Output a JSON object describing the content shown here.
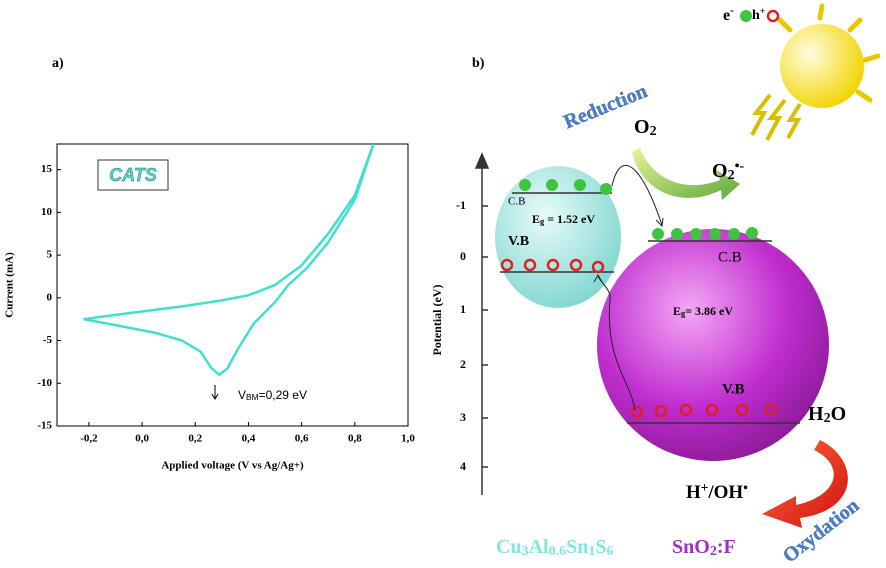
{
  "chart_data": {
    "type": "line",
    "panel_label": "a)",
    "x_label": "Applied voltage (V vs Ag/Ag+)",
    "y_label": "Current (mA)",
    "annotation_box": "CATS",
    "annotation_vbm": [
      "V",
      "BM",
      "=0,29 eV"
    ],
    "color": "#40e0d0",
    "x": [
      0.87,
      0.8,
      0.7,
      0.6,
      0.5,
      0.4,
      0.3,
      0.15,
      0.0,
      -0.15,
      -0.22,
      -0.1,
      0.05,
      0.15,
      0.22,
      0.26,
      0.29,
      0.32,
      0.36,
      0.42,
      0.5,
      0.55,
      0.62,
      0.7,
      0.8,
      0.87
    ],
    "values": [
      18,
      12,
      7.5,
      3.8,
      1.5,
      0.3,
      -0.3,
      -1,
      -1.6,
      -2.2,
      -2.5,
      -3.2,
      -4.1,
      -5,
      -6.3,
      -8.2,
      -9,
      -8.3,
      -6,
      -3,
      -0.5,
      1.5,
      3.5,
      6.5,
      11.5,
      18
    ],
    "xlim": [
      -0.32,
      1.0
    ],
    "ylim": [
      -15,
      18
    ],
    "xticks": [
      {
        "value": -0.2,
        "label": "-0,2"
      },
      {
        "value": 0,
        "label": "0,0"
      },
      {
        "value": 0.2,
        "label": "0,2"
      },
      {
        "value": 0.4,
        "label": "0,4"
      },
      {
        "value": 0.6,
        "label": "0,6"
      },
      {
        "value": 0.8,
        "label": "0,8"
      },
      {
        "value": 1.0,
        "label": "1,0"
      }
    ],
    "yticks": [
      -15,
      -10,
      -5,
      0,
      5,
      10,
      15
    ]
  },
  "diagram": {
    "panel_label": "b)",
    "legend_electron": [
      "e",
      "-"
    ],
    "legend_hole": [
      "h",
      "+"
    ],
    "reduction": "Reduction",
    "oxidation": "Oxydation",
    "o2": [
      "O",
      "2"
    ],
    "superoxide": [
      "O",
      "2",
      "•-"
    ],
    "h2o": [
      "H",
      "2",
      "O"
    ],
    "products": [
      "H",
      "+",
      "/OH",
      "•"
    ],
    "axis_label": "Potential (eV)",
    "axis_ticks": [
      "-1",
      "0",
      "1",
      "2",
      "3",
      "4"
    ],
    "left": {
      "cb": "C.B",
      "gap": [
        "E",
        "g",
        " = 1.52 eV"
      ],
      "vb": "V.B",
      "name": [
        "Cu",
        "3",
        "Al",
        "0.6",
        "Sn",
        "1",
        "S",
        "6"
      ]
    },
    "right": {
      "cb": "C.B",
      "gap": [
        "E",
        "g",
        "=  3.86 eV"
      ],
      "vb": "V.B",
      "name": [
        "SnO",
        "2",
        ":F"
      ]
    }
  }
}
